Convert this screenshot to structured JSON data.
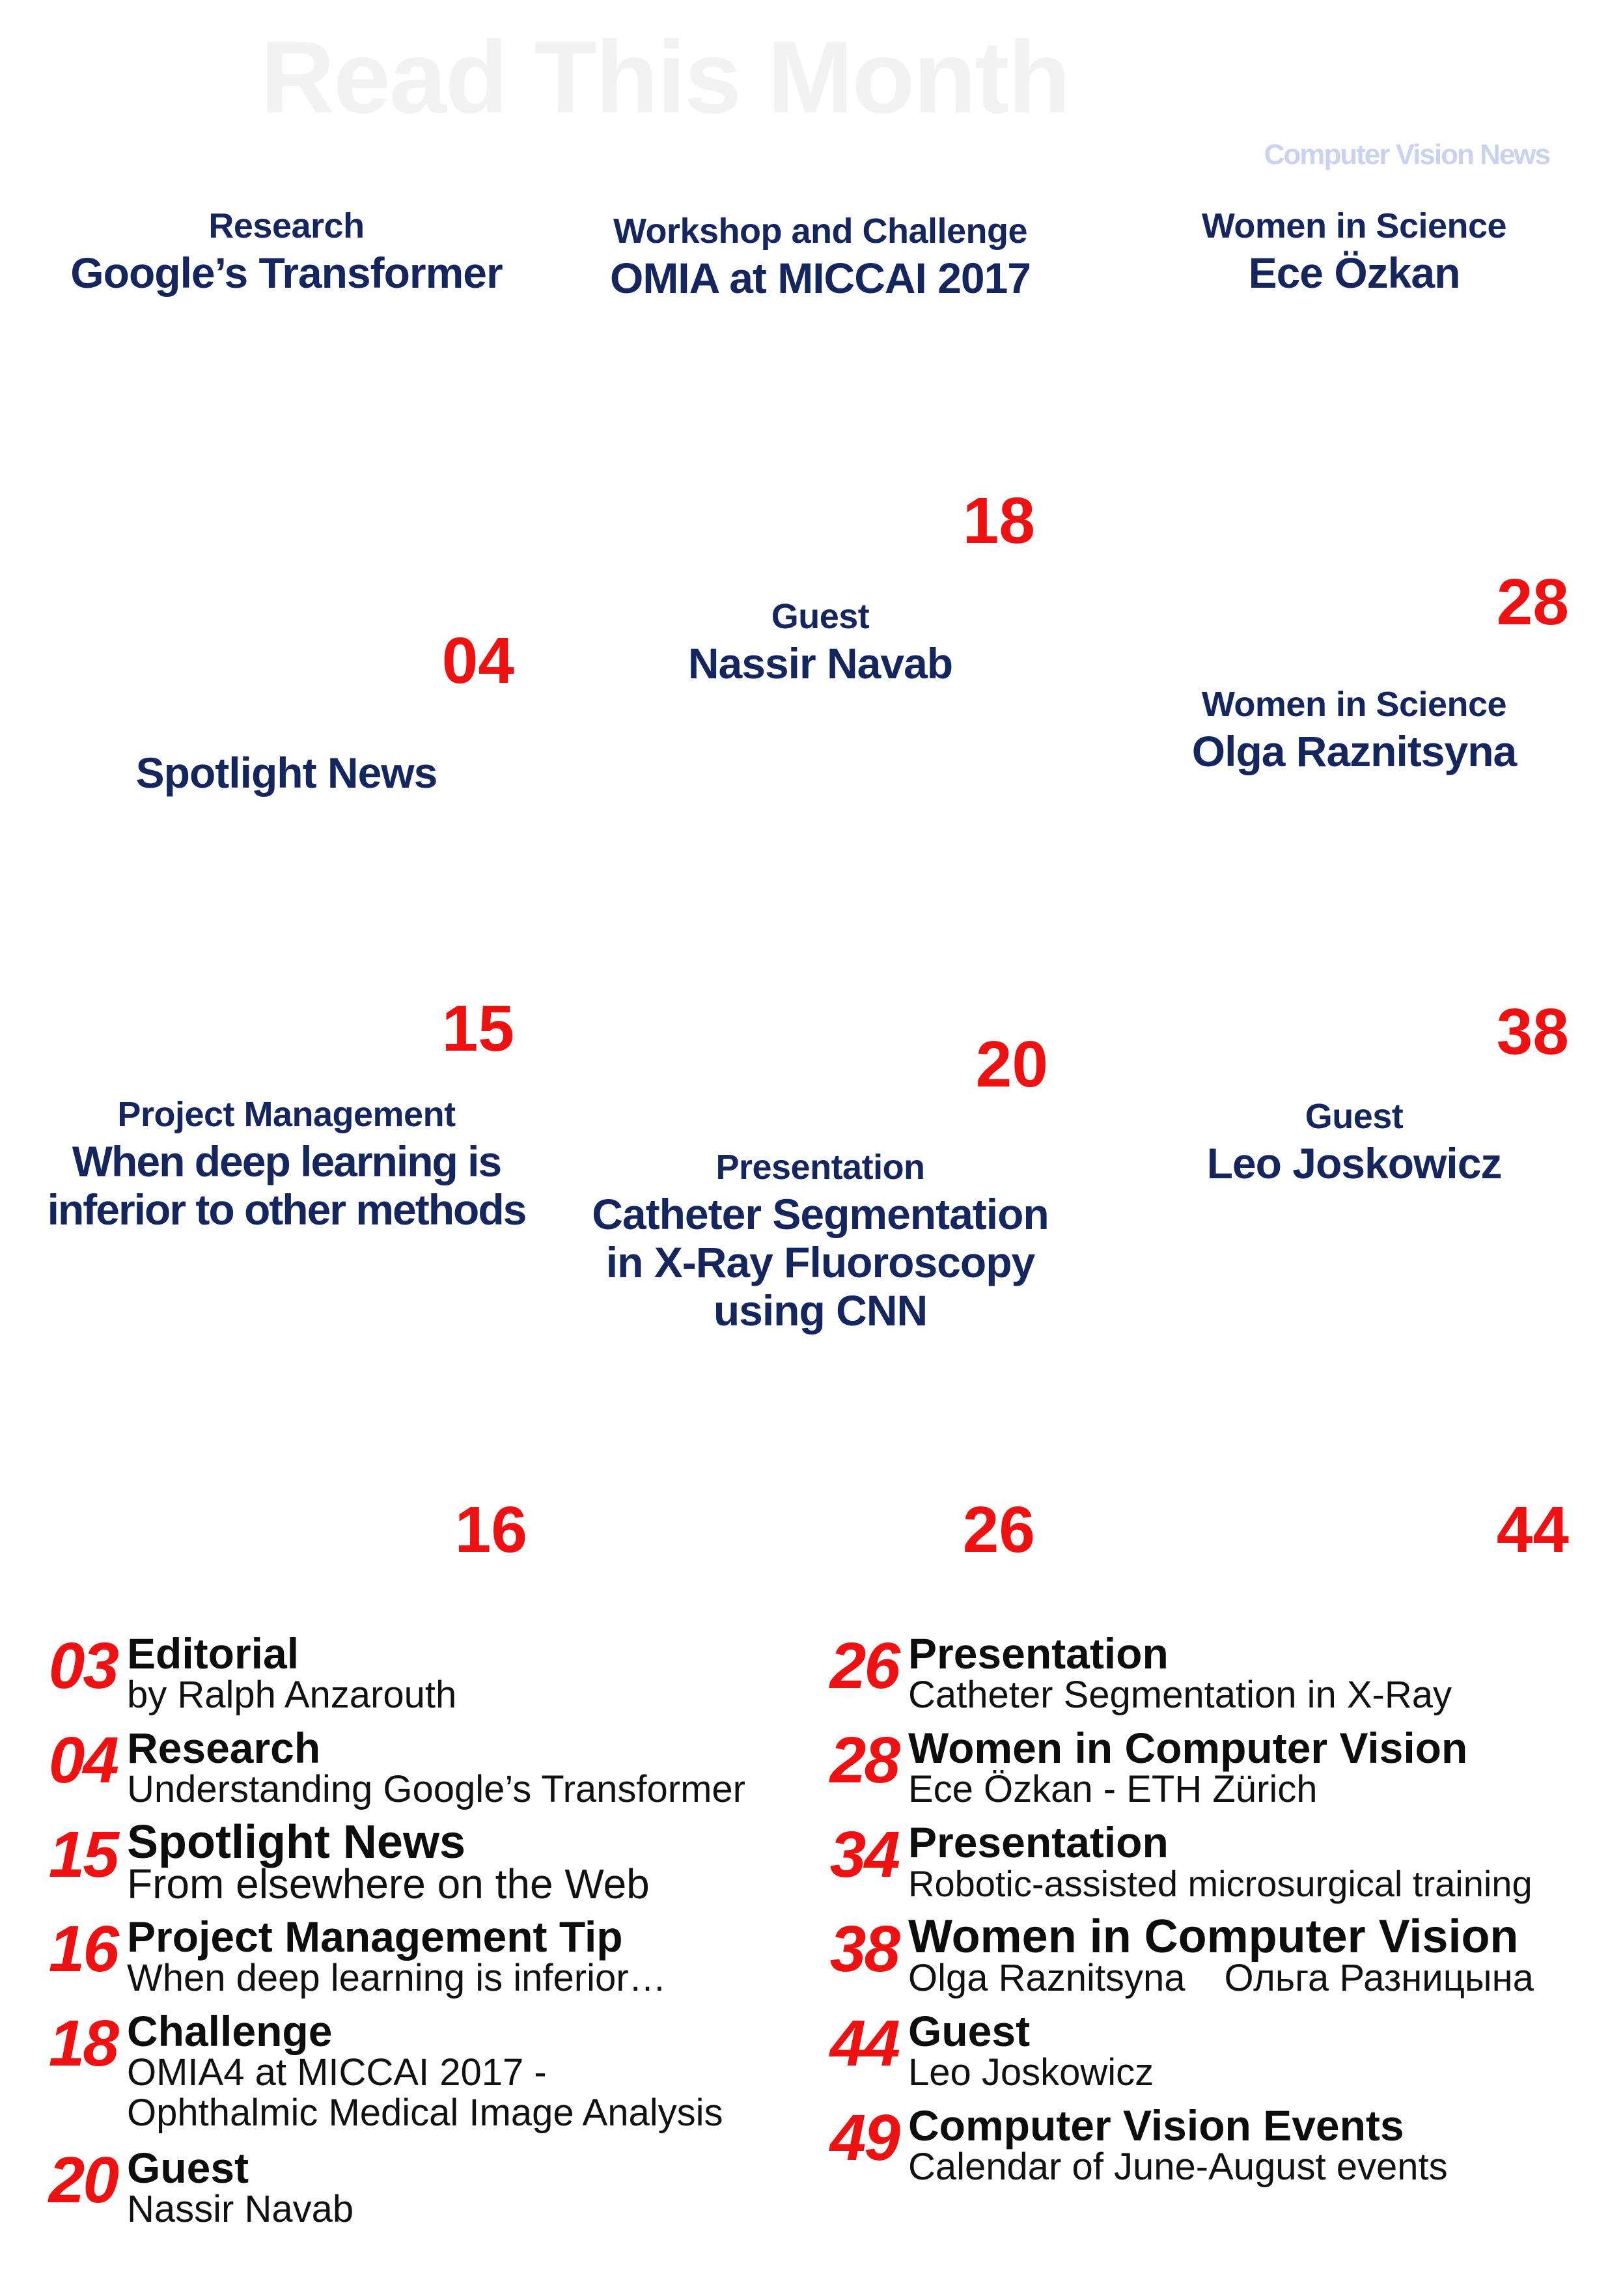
{
  "masthead": {
    "title": "Read This Month",
    "brand": "Computer Vision News"
  },
  "tiles": {
    "research": {
      "category": "Research",
      "title": "Google’s Transformer",
      "page": "04"
    },
    "workshop": {
      "category": "Workshop and Challenge",
      "title": "OMIA at MICCAI 2017",
      "page": "18"
    },
    "wis_ece": {
      "category": "Women in Science",
      "title": "Ece Özkan",
      "page": "28"
    },
    "spotlight": {
      "title": "Spotlight News",
      "page": "15"
    },
    "guest_nassir": {
      "category": "Guest",
      "title": "Nassir Navab",
      "page": "20"
    },
    "wis_olga": {
      "category": "Women in Science",
      "title": "Olga Raznitsyna",
      "page": "38"
    },
    "project": {
      "category": "Project Management",
      "title_line1": "When deep learning is",
      "title_line2": "inferior to other methods",
      "page": "16"
    },
    "presentation": {
      "category": "Presentation",
      "title_line1": "Catheter Segmentation",
      "title_line2": "in X-Ray Fluoroscopy",
      "title_line3": "using CNN",
      "page": "26"
    },
    "guest_leo": {
      "category": "Guest",
      "title": "Leo Joskowicz",
      "page": "44"
    }
  },
  "toc_left": [
    {
      "num": "03",
      "head": "Editorial",
      "sub": "by Ralph Anzarouth"
    },
    {
      "num": "04",
      "head": "Research",
      "sub": "Understanding Google’s Transformer"
    },
    {
      "num": "15",
      "head": "Spotlight News",
      "sub": "From elsewhere on the Web"
    },
    {
      "num": "16",
      "head": "Project Management Tip",
      "sub": "When deep learning is inferior…"
    },
    {
      "num": "18",
      "head": "Challenge",
      "sub": "OMIA4 at MICCAI 2017 -",
      "sub2": "Ophthalmic Medical Image Analysis"
    },
    {
      "num": "20",
      "head": "Guest",
      "sub": "Nassir Navab"
    }
  ],
  "toc_right": [
    {
      "num": "26",
      "head": "Presentation",
      "sub": "Catheter Segmentation in X-Ray"
    },
    {
      "num": "28",
      "head": "Women in Computer Vision",
      "sub": "Ece Özkan - ETH Zürich"
    },
    {
      "num": "34",
      "head": "Presentation",
      "sub": "Robotic-assisted microsurgical training"
    },
    {
      "num": "38",
      "head": "Women in Computer Vision",
      "sub": "Olga Raznitsyna",
      "sub_alt": "Ольга Разницына"
    },
    {
      "num": "44",
      "head": "Guest",
      "sub": "Leo Joskowicz"
    },
    {
      "num": "49",
      "head": "Computer Vision Events",
      "sub": "Calendar of June-August events"
    }
  ],
  "colors": {
    "navy": "#15265e",
    "red": "#ee1111",
    "masthead": "#f2f2f2",
    "brand": "#c9d2ee"
  }
}
